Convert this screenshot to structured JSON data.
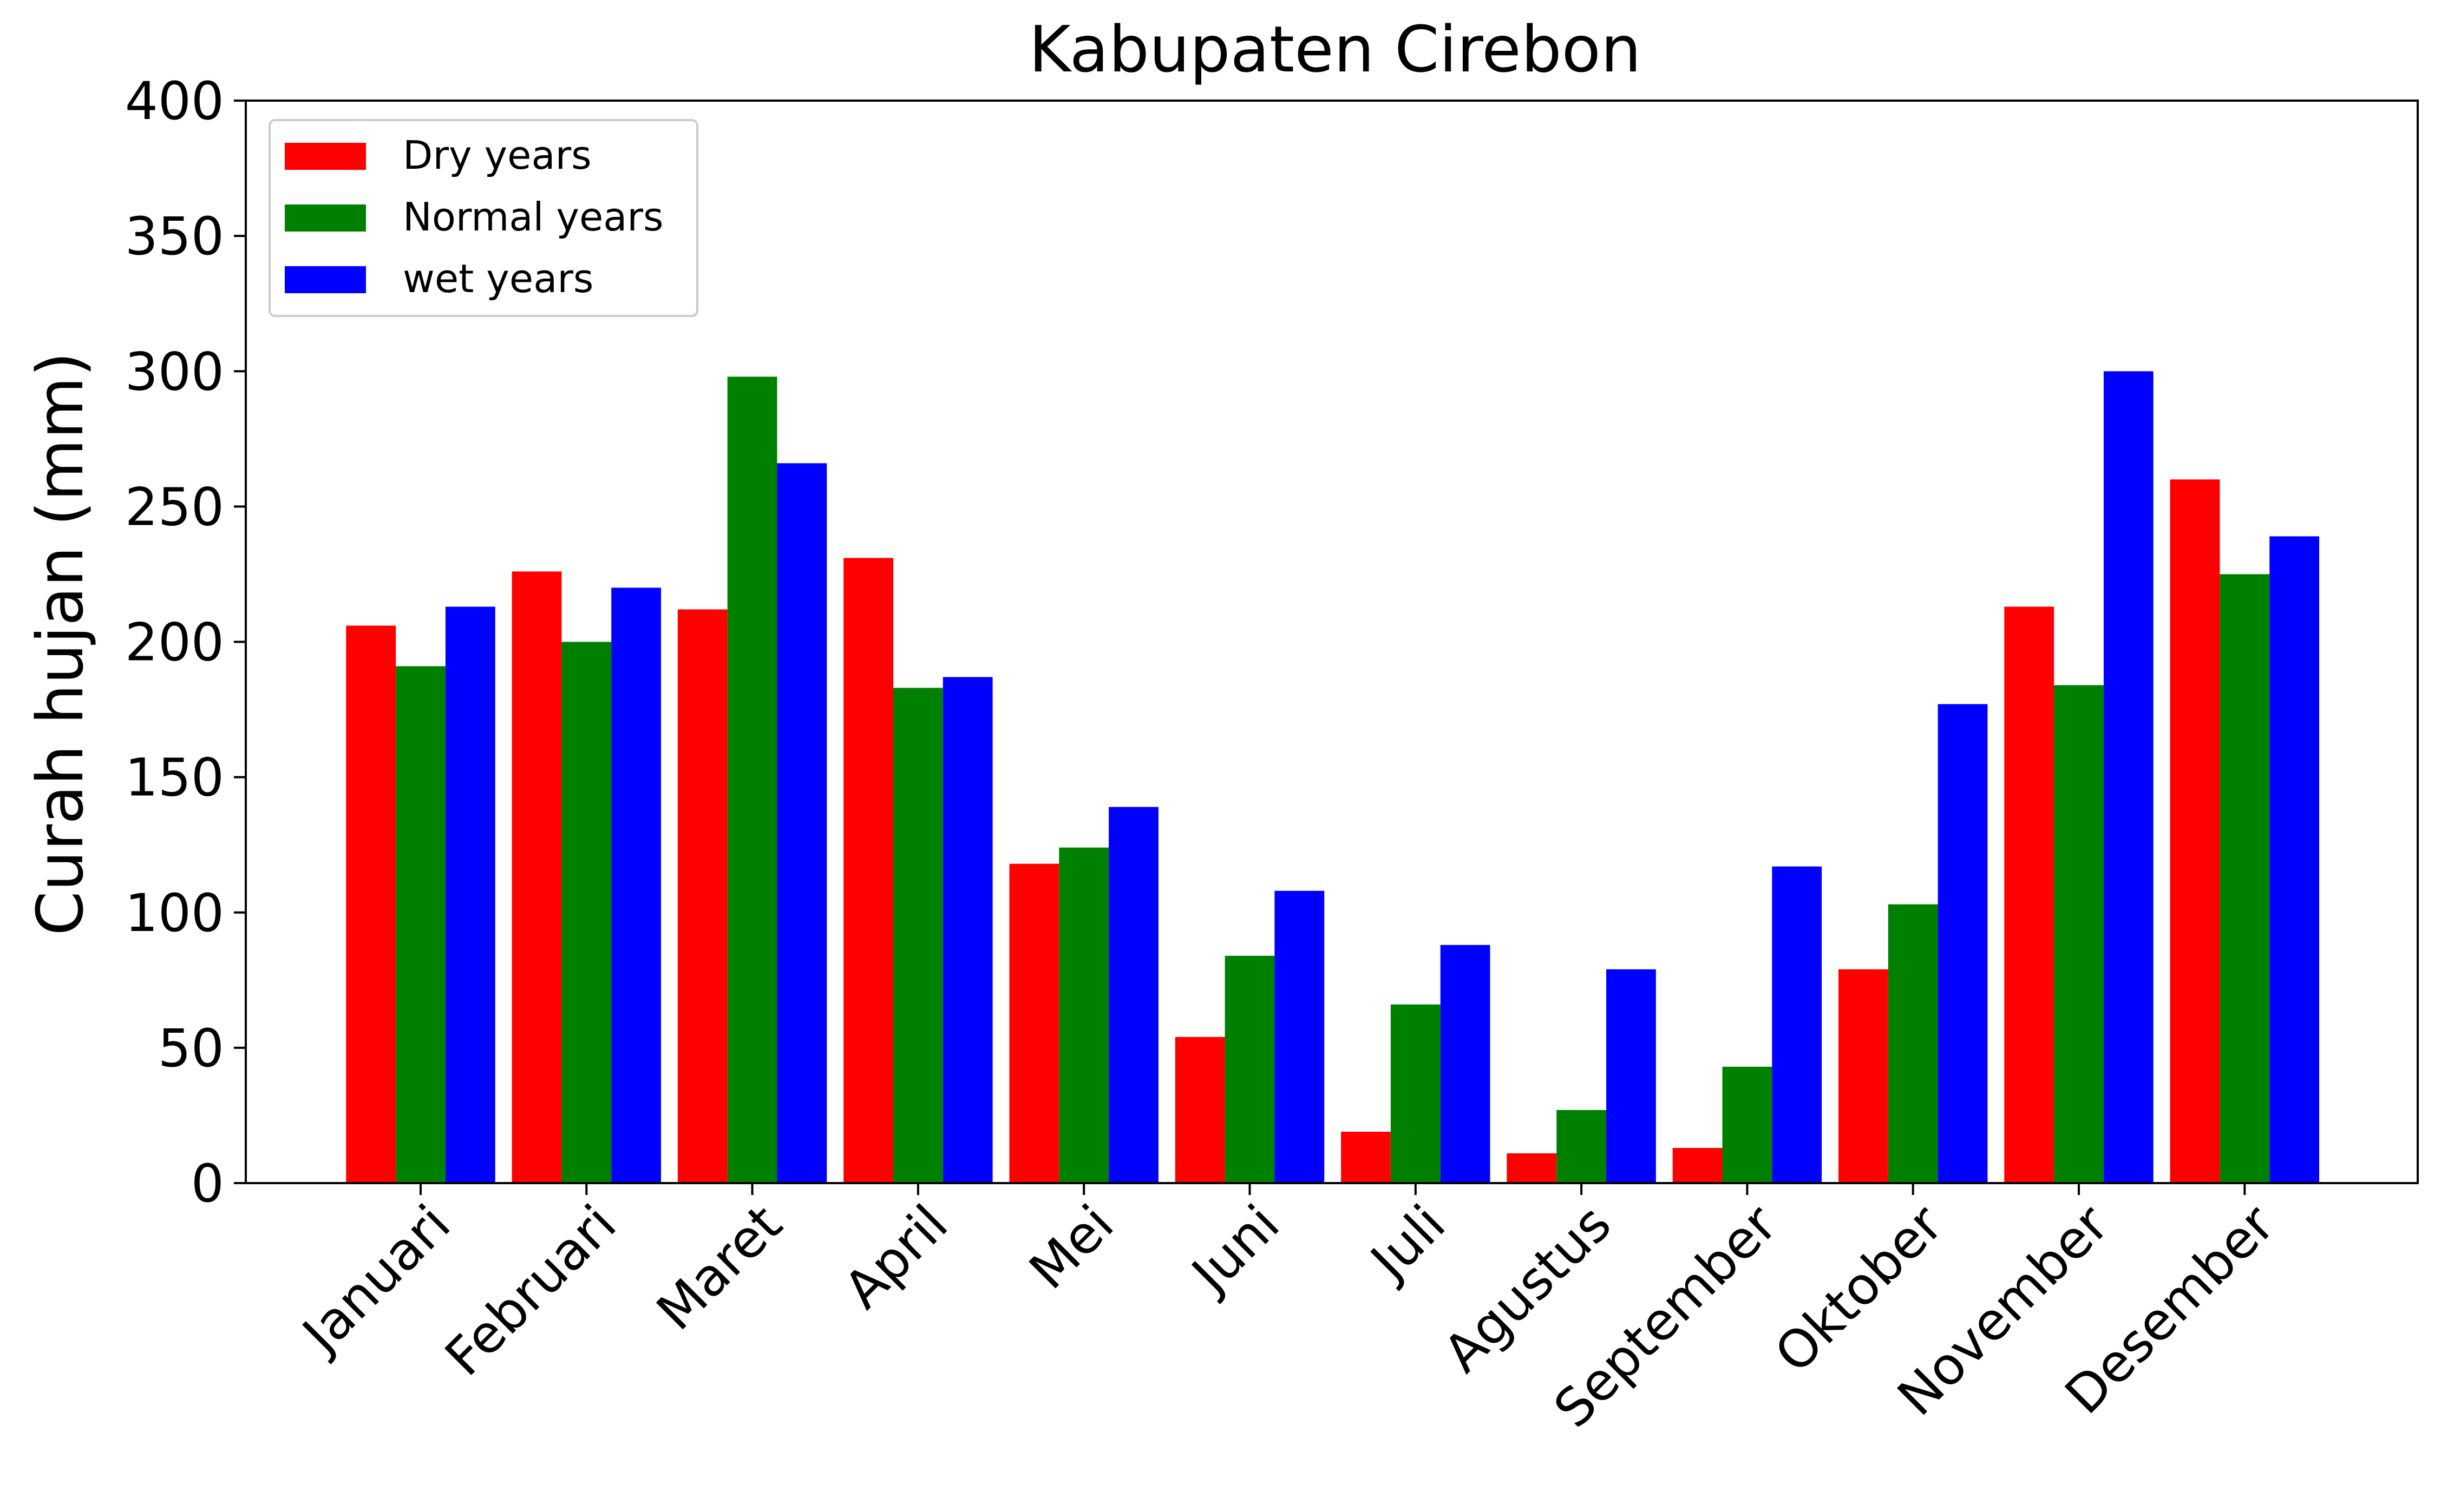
{
  "chart_data": {
    "type": "bar",
    "title": "Kabupaten Cirebon",
    "xlabel": "",
    "ylabel": "Curah hujan (mm)",
    "ylim": [
      0,
      400
    ],
    "yticks": [
      0,
      50,
      100,
      150,
      200,
      250,
      300,
      350,
      400
    ],
    "grid": false,
    "legend_position": "top-left",
    "categories": [
      "Januari",
      "Februari",
      "Maret",
      "April",
      "Mei",
      "Juni",
      "Juli",
      "Agustus",
      "September",
      "Oktober",
      "November",
      "Desember"
    ],
    "series": [
      {
        "name": "Dry years",
        "color": "#ff0000",
        "values": [
          206,
          226,
          212,
          231,
          118,
          54,
          19,
          11,
          13,
          79,
          213,
          260
        ]
      },
      {
        "name": "Normal years",
        "color": "#008000",
        "values": [
          191,
          200,
          298,
          183,
          124,
          84,
          66,
          27,
          43,
          103,
          184,
          225
        ]
      },
      {
        "name": "wet years",
        "color": "#0000ff",
        "values": [
          213,
          220,
          266,
          187,
          139,
          108,
          88,
          79,
          117,
          177,
          300,
          239
        ]
      }
    ]
  }
}
